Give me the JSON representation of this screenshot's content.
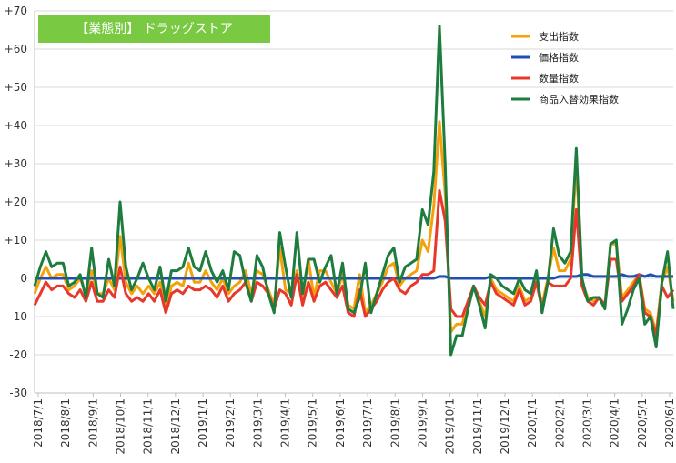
{
  "chart_data": {
    "type": "line",
    "title": "【業態別】 ドラッグストア",
    "title_bg_color": "#7ac943",
    "xlabel": "",
    "ylabel": "",
    "ylim": [
      -30,
      70
    ],
    "y_ticks": [
      -30,
      -20,
      -10,
      0,
      10,
      20,
      30,
      40,
      50,
      60,
      70
    ],
    "y_tick_labels": [
      "-30",
      "-20",
      "-10",
      "0",
      "+10",
      "+20",
      "+30",
      "+40",
      "+50",
      "+60",
      "+70"
    ],
    "x_tick_labels": [
      "2018/7/1",
      "2018/8/1",
      "2018/9/1",
      "2018/10/1",
      "2018/11/1",
      "2018/12/1",
      "2019/1/1",
      "2019/2/1",
      "2019/3/1",
      "2019/4/1",
      "2019/5/1",
      "2019/6/1",
      "2019/7/1",
      "2019/8/1",
      "2019/9/1",
      "2019/10/1",
      "2019/11/1",
      "2019/12/1",
      "2020/1/1",
      "2020/2/1",
      "2020/3/1",
      "2020/4/1",
      "2020/5/1",
      "2020/6/1"
    ],
    "grid": true,
    "legend_position": "top-right",
    "series": [
      {
        "name": "支出指数",
        "color": "#f5a20a",
        "values": [
          -4,
          0,
          3,
          0,
          1,
          1,
          -3,
          -2,
          0,
          -4,
          2,
          -4,
          -4,
          0,
          -3,
          11,
          -1,
          -4,
          -2,
          -4,
          -2,
          -4,
          -1,
          -8,
          -2,
          -1,
          -2,
          4,
          -1,
          -1,
          2,
          -1,
          -3,
          0,
          -4,
          -2,
          -1,
          2,
          -4,
          2,
          1,
          -3,
          -7,
          8,
          -3,
          -4,
          2,
          -5,
          5,
          -5,
          2,
          2,
          -1,
          -4,
          1,
          -7,
          -8,
          1,
          -9,
          -7,
          -4,
          -1,
          3,
          4,
          -2,
          0,
          1,
          2,
          10,
          7,
          19,
          41,
          22,
          -14,
          -12,
          -12,
          -6,
          -2,
          -6,
          -10,
          0,
          -3,
          -4,
          -5,
          -6,
          -2,
          -6,
          -5,
          0,
          -7,
          0,
          8,
          2,
          2,
          5,
          30,
          -1,
          -5,
          -6,
          -5,
          -7,
          9,
          9,
          -5,
          -3,
          -1,
          1,
          -8,
          -9,
          -14,
          -1,
          3,
          -6
        ]
      },
      {
        "name": "価格指数",
        "color": "#1f4fb6",
        "values": [
          0,
          0,
          0,
          0,
          0,
          0,
          0,
          0,
          0,
          0,
          0,
          0,
          0,
          0,
          0,
          0,
          0,
          0,
          0,
          0,
          0,
          0,
          0,
          0,
          0,
          0,
          0,
          0,
          0,
          0,
          0,
          0,
          0,
          0,
          0,
          0,
          0,
          0,
          0,
          0,
          0,
          0,
          0,
          0,
          0,
          0,
          0,
          0,
          0,
          0,
          0,
          0,
          0,
          0,
          0,
          0,
          0,
          0,
          0,
          0,
          0,
          0,
          0,
          0,
          0,
          0,
          0,
          0,
          0,
          0,
          0,
          0.5,
          0.5,
          0,
          0,
          0,
          0,
          0,
          0,
          0,
          0.5,
          0,
          0,
          0,
          0,
          0,
          0,
          0,
          0,
          0,
          0,
          0,
          0.5,
          0.5,
          0.5,
          0.5,
          1,
          1,
          0.5,
          0.5,
          0.5,
          0.5,
          0.5,
          1,
          0.5,
          0.5,
          1,
          0.5,
          1,
          0.5,
          0.5,
          0.5,
          0.5
        ]
      },
      {
        "name": "数量指数",
        "color": "#e8382b",
        "values": [
          -7,
          -4,
          -1,
          -3,
          -2,
          -2,
          -4,
          -5,
          -3,
          -6,
          -1,
          -6,
          -6,
          -3,
          -5,
          3,
          -4,
          -6,
          -5,
          -6,
          -4,
          -6,
          -3,
          -9,
          -4,
          -3,
          -4,
          -2,
          -3,
          -3,
          -2,
          -3,
          -5,
          -2,
          -6,
          -4,
          -3,
          -1,
          -6,
          -1,
          -2,
          -4,
          -8,
          -3,
          -4,
          -7,
          1,
          -7,
          -1,
          -6,
          -2,
          -1,
          -3,
          -5,
          -2,
          -9,
          -10,
          -3,
          -10,
          -8,
          -6,
          -3,
          -1,
          0,
          -3,
          -4,
          -2,
          -1,
          1,
          1,
          2,
          23,
          15,
          -8,
          -10,
          -10,
          -6,
          -2,
          -5,
          -7,
          -1,
          -4,
          -5,
          -6,
          -7,
          -3,
          -7,
          -6,
          -1,
          -8,
          -1,
          -2,
          -2,
          -2,
          0,
          18,
          -2,
          -6,
          -7,
          -5,
          -7,
          5,
          5,
          -6,
          -4,
          -2,
          1,
          -9,
          -10,
          -15,
          -2,
          -5,
          -3
        ]
      },
      {
        "name": "商品入替効果指数",
        "color": "#1e7d3e",
        "values": [
          -2,
          3,
          7,
          3,
          4,
          4,
          -2,
          -1,
          1,
          -5,
          8,
          -4,
          -5,
          5,
          -2,
          20,
          3,
          -3,
          0,
          4,
          0,
          -3,
          3,
          -6,
          2,
          2,
          3,
          8,
          3,
          2,
          7,
          2,
          -1,
          2,
          -3,
          7,
          6,
          -1,
          -6,
          6,
          3,
          -4,
          -9,
          12,
          3,
          -5,
          12,
          -4,
          5,
          5,
          -1,
          3,
          6,
          -4,
          4,
          -8,
          -9,
          -5,
          4,
          -9,
          -4,
          1,
          6,
          8,
          -1,
          3,
          4,
          5,
          18,
          14,
          28,
          66,
          30,
          -20,
          -15,
          -15,
          -8,
          -2,
          -7,
          -13,
          1,
          0,
          -2,
          -3,
          -4,
          0,
          -3,
          -4,
          2,
          -9,
          -1,
          13,
          6,
          4,
          7,
          34,
          0,
          -6,
          -5,
          -5,
          -8,
          9,
          10,
          -12,
          -8,
          -3,
          0,
          -12,
          -10,
          -18,
          -1,
          7,
          -8
        ]
      }
    ]
  }
}
